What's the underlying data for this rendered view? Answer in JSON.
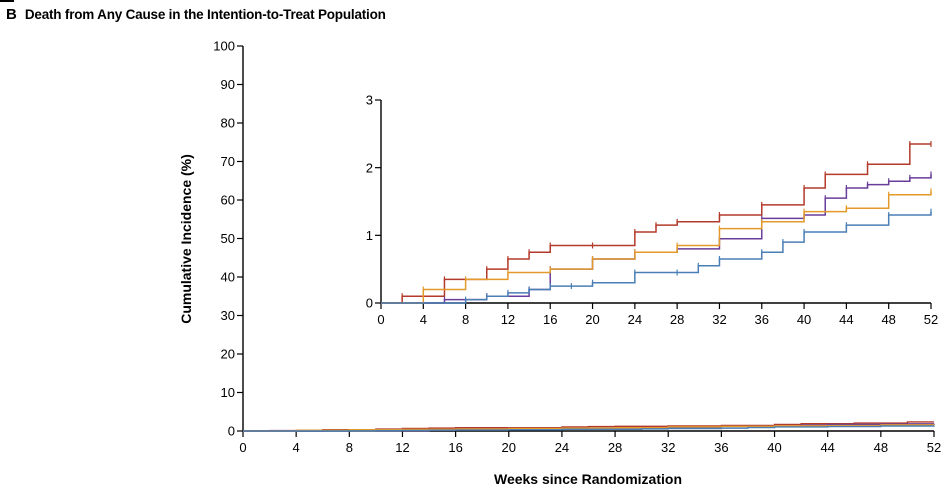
{
  "panel": {
    "letter": "B",
    "title": "Death from Any Cause in the Intention-to-Treat Population"
  },
  "chart_data": {
    "type": "line",
    "step": true,
    "xlabel": "Weeks since Randomization",
    "ylabel": "Cumulative Incidence (%)",
    "xlim": [
      0,
      52
    ],
    "ylim": [
      0,
      100
    ],
    "xticks": [
      0,
      4,
      8,
      12,
      16,
      20,
      24,
      28,
      32,
      36,
      40,
      44,
      48,
      52
    ],
    "yticks": [
      0,
      10,
      20,
      30,
      40,
      50,
      60,
      70,
      80,
      90,
      100
    ],
    "legend": "none",
    "series": [
      {
        "color": "#b33a2a",
        "x": [
          0,
          2,
          6,
          10,
          12,
          14,
          16,
          20,
          24,
          26,
          28,
          32,
          36,
          40,
          42,
          46,
          50,
          52
        ],
        "y": [
          0,
          0.1,
          0.35,
          0.5,
          0.65,
          0.75,
          0.85,
          0.85,
          1.05,
          1.15,
          1.2,
          1.3,
          1.45,
          1.7,
          1.9,
          2.05,
          2.35,
          2.35
        ]
      },
      {
        "color": "#6a3d9a",
        "x": [
          0,
          6,
          10,
          14,
          16,
          20,
          24,
          28,
          32,
          36,
          40,
          42,
          44,
          46,
          48,
          50,
          52
        ],
        "y": [
          0,
          0.05,
          0.1,
          0.2,
          0.5,
          0.65,
          0.75,
          0.8,
          0.95,
          1.25,
          1.3,
          1.55,
          1.7,
          1.75,
          1.8,
          1.85,
          1.9
        ]
      },
      {
        "color": "#e39a2b",
        "x": [
          0,
          4,
          8,
          12,
          16,
          20,
          24,
          28,
          32,
          36,
          40,
          44,
          48,
          52
        ],
        "y": [
          0,
          0.2,
          0.35,
          0.45,
          0.5,
          0.65,
          0.75,
          0.85,
          1.1,
          1.2,
          1.35,
          1.4,
          1.6,
          1.65
        ]
      },
      {
        "color": "#4a7fb5",
        "x": [
          0,
          8,
          10,
          12,
          14,
          16,
          18,
          20,
          24,
          28,
          30,
          32,
          36,
          38,
          40,
          44,
          48,
          52
        ],
        "y": [
          0,
          0.05,
          0.1,
          0.15,
          0.2,
          0.25,
          0.25,
          0.3,
          0.45,
          0.45,
          0.55,
          0.65,
          0.75,
          0.9,
          1.05,
          1.15,
          1.3,
          1.35
        ]
      }
    ],
    "inset": {
      "xlim": [
        0,
        52
      ],
      "ylim": [
        0,
        3
      ],
      "xticks": [
        0,
        4,
        8,
        12,
        16,
        20,
        24,
        28,
        32,
        36,
        40,
        44,
        48,
        52
      ],
      "yticks": [
        0,
        1,
        2,
        3
      ]
    }
  }
}
